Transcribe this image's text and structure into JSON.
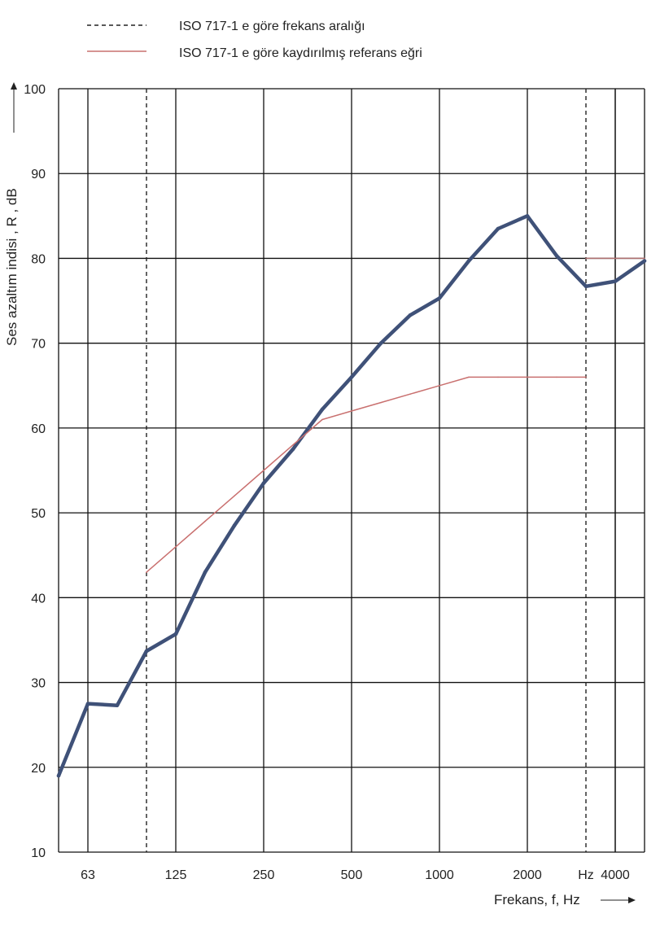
{
  "chart_data": {
    "type": "line",
    "title": "",
    "xlabel": "Frekans, f, Hz",
    "ylabel": "Ses azaltım indisi , R , dB",
    "ylim": [
      10,
      100
    ],
    "yticks": [
      10,
      20,
      30,
      40,
      50,
      60,
      70,
      80,
      90,
      100
    ],
    "x_scale": "log (one-third octave bands)",
    "x": [
      50,
      63,
      80,
      100,
      125,
      160,
      200,
      250,
      315,
      400,
      500,
      630,
      800,
      1000,
      1250,
      1600,
      2000,
      2500,
      3150,
      4000,
      5000
    ],
    "xtick_labels": [
      {
        "f": 63,
        "label": "63"
      },
      {
        "f": 125,
        "label": "125"
      },
      {
        "f": 250,
        "label": "250"
      },
      {
        "f": 500,
        "label": "500"
      },
      {
        "f": 1000,
        "label": "1000"
      },
      {
        "f": 2000,
        "label": "2000"
      },
      {
        "f": 3150,
        "label": "Hz"
      },
      {
        "f": 4000,
        "label": "4000"
      }
    ],
    "grid": true,
    "legend_position": "top",
    "frequency_range_markers": [
      100,
      3150
    ],
    "series": [
      {
        "name": "",
        "color": "#3f5178",
        "x": [
          50,
          63,
          80,
          100,
          125,
          160,
          200,
          250,
          315,
          400,
          500,
          630,
          800,
          1000,
          1250,
          1600,
          2000,
          2500,
          3150,
          4000,
          5000
        ],
        "values": [
          19,
          27.5,
          27.3,
          33.7,
          35.7,
          43,
          48.5,
          53.5,
          57.5,
          62.2,
          66,
          70,
          73.3,
          75.3,
          79.7,
          83.5,
          85,
          80.3,
          76.7,
          77.3,
          79.7
        ]
      },
      {
        "name": "ISO 717-1 e göre kaydırılmış referans eğri",
        "color": "#c9706f",
        "x": [
          100,
          125,
          160,
          200,
          250,
          315,
          400,
          500,
          630,
          800,
          1000,
          1250,
          1600,
          2000,
          2500,
          3150
        ],
        "values": [
          43,
          46,
          49,
          52,
          55,
          58,
          61,
          62,
          63,
          64,
          65,
          66,
          66,
          66,
          66,
          66
        ]
      },
      {
        "name": "",
        "color": "#b07070",
        "x": [
          3150,
          4000,
          5000
        ],
        "values": [
          80,
          80,
          80
        ]
      }
    ],
    "legend": [
      {
        "style": "dashed",
        "color": "#222222",
        "label": "ISO 717-1 e göre frekans aralığı"
      },
      {
        "style": "solid",
        "color": "#c9706f",
        "label": "ISO 717-1 e göre kaydırılmış referans eğri"
      }
    ]
  }
}
